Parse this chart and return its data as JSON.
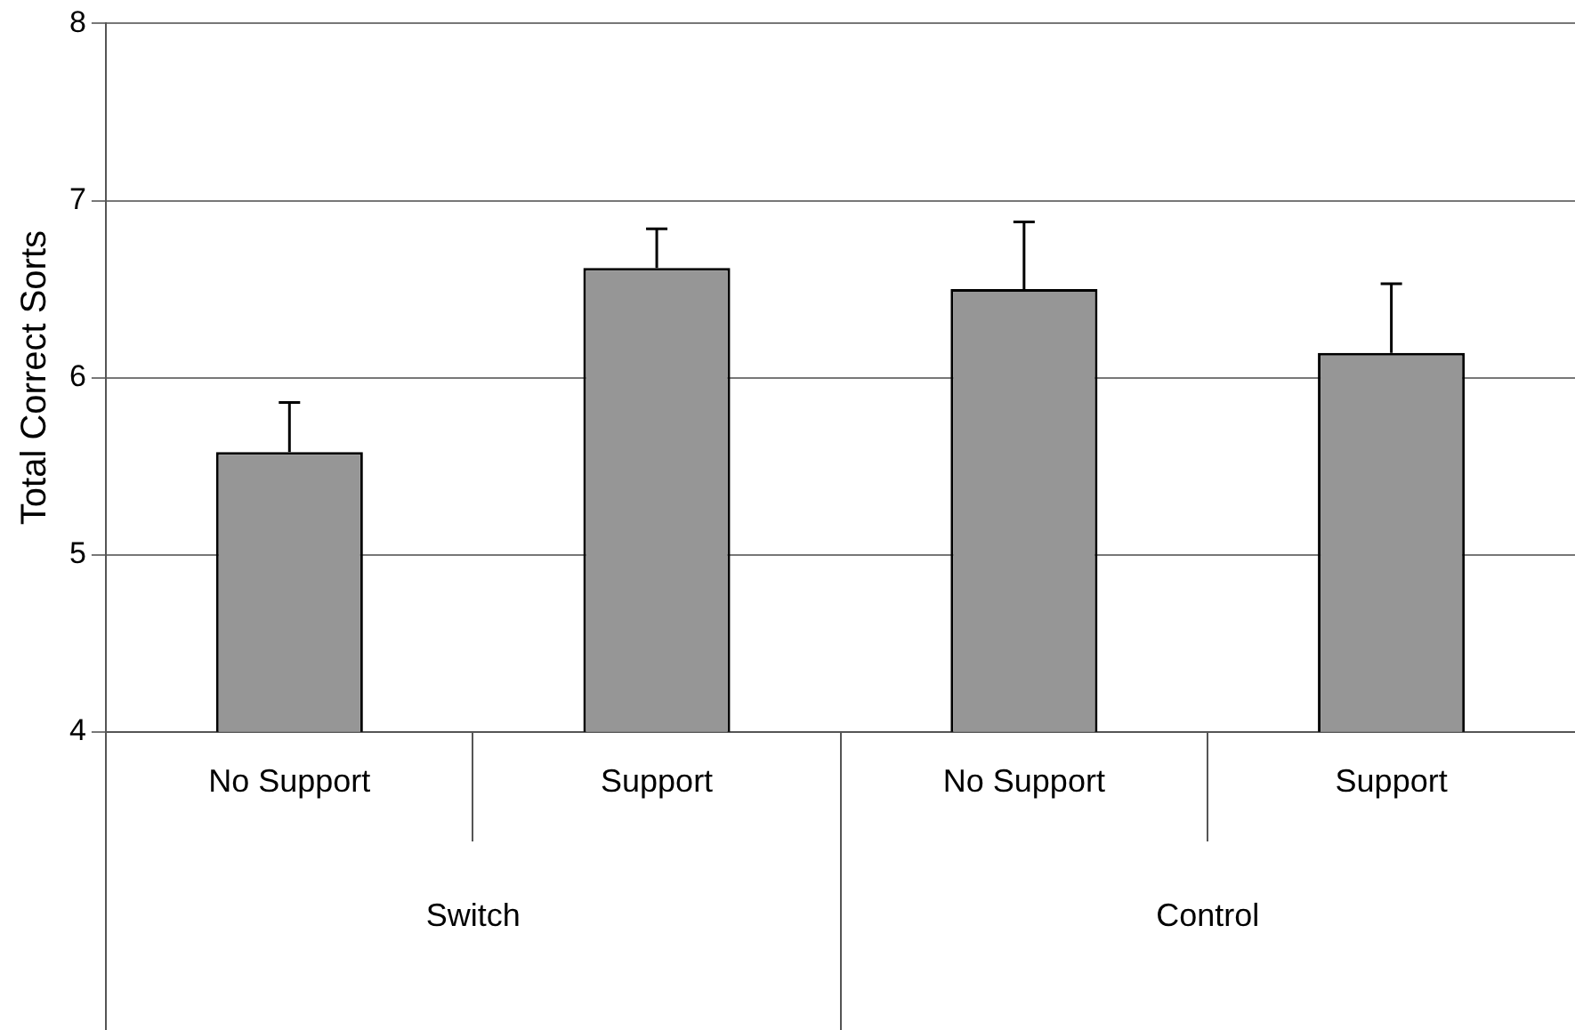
{
  "chart_data": {
    "type": "bar",
    "ylabel": "Total Correct Sorts",
    "categories": [
      "No Support",
      "Support",
      "No Support",
      "Support"
    ],
    "values": [
      5.58,
      6.62,
      6.5,
      6.14
    ],
    "errors": [
      [
        5.58,
        5.86
      ],
      [
        6.62,
        6.84
      ],
      [
        6.5,
        6.88
      ],
      [
        6.14,
        6.53
      ]
    ],
    "color": "#969696",
    "ylim": [
      4,
      8
    ],
    "yticks": [
      4,
      5,
      6,
      7,
      8
    ],
    "grid": "y",
    "annotations": [
      "Switch",
      "Control"
    ]
  }
}
